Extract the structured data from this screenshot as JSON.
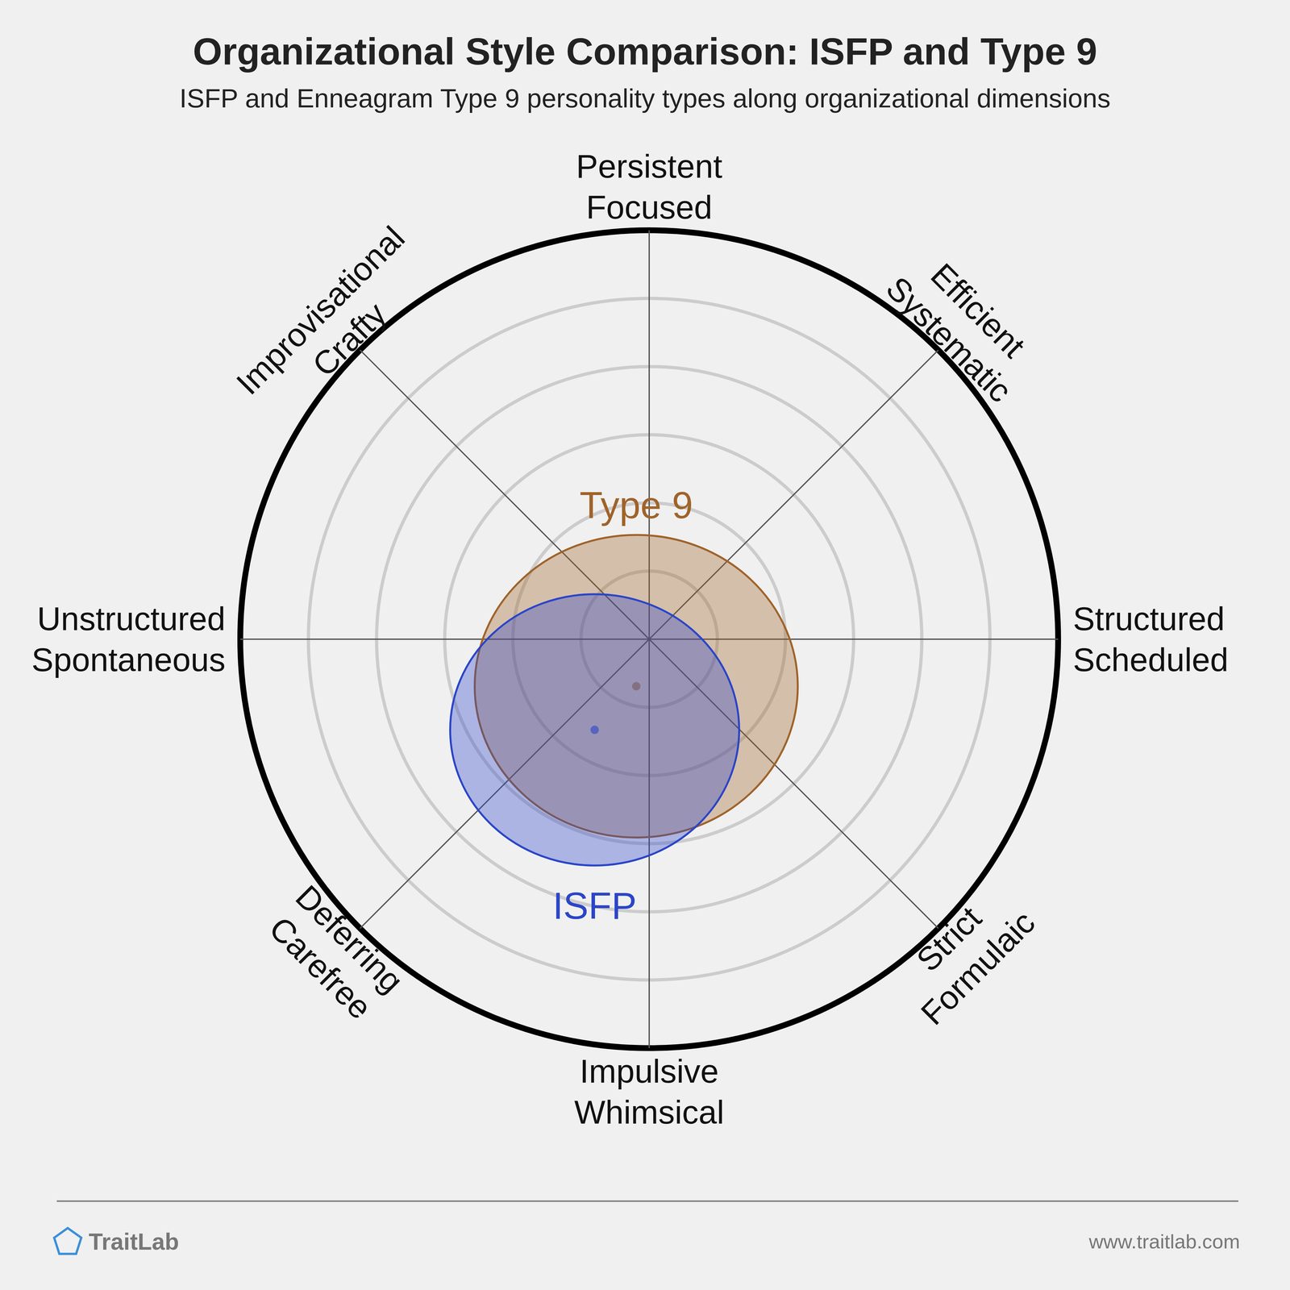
{
  "chart_data": {
    "type": "radial",
    "title": "Organizational Style Comparison: ISFP and Type 9",
    "subtitle": "ISFP and Enneagram Type 9 personality types along organizational dimensions",
    "axis_labels": [
      [
        "Persistent",
        "Focused"
      ],
      [
        "Efficient",
        "Systematic"
      ],
      [
        "Structured",
        "Scheduled"
      ],
      [
        "Strict",
        "Formulaic"
      ],
      [
        "Impulsive",
        "Whimsical"
      ],
      [
        "Deferring",
        "Carefree"
      ],
      [
        "Unstructured",
        "Spontaneous"
      ],
      [
        "Improvisational",
        "Crafty"
      ]
    ],
    "series": [
      {
        "name": "Type 9",
        "color": "#a0632a",
        "x": -0.19,
        "y": -0.69,
        "rx": 2.37,
        "ry": 2.22
      },
      {
        "name": "ISFP",
        "color": "#2b45c8",
        "x": -0.8,
        "y": -1.33,
        "rx": 2.12,
        "ry": 1.99
      }
    ],
    "xlim": [
      -6,
      6
    ],
    "ylim": [
      -6,
      6
    ],
    "rings": [
      1,
      2,
      3,
      4,
      5
    ],
    "grid": true,
    "tick_labels": false,
    "footer": {
      "brand": "TraitLab",
      "url": "www.traitlab.com"
    }
  }
}
